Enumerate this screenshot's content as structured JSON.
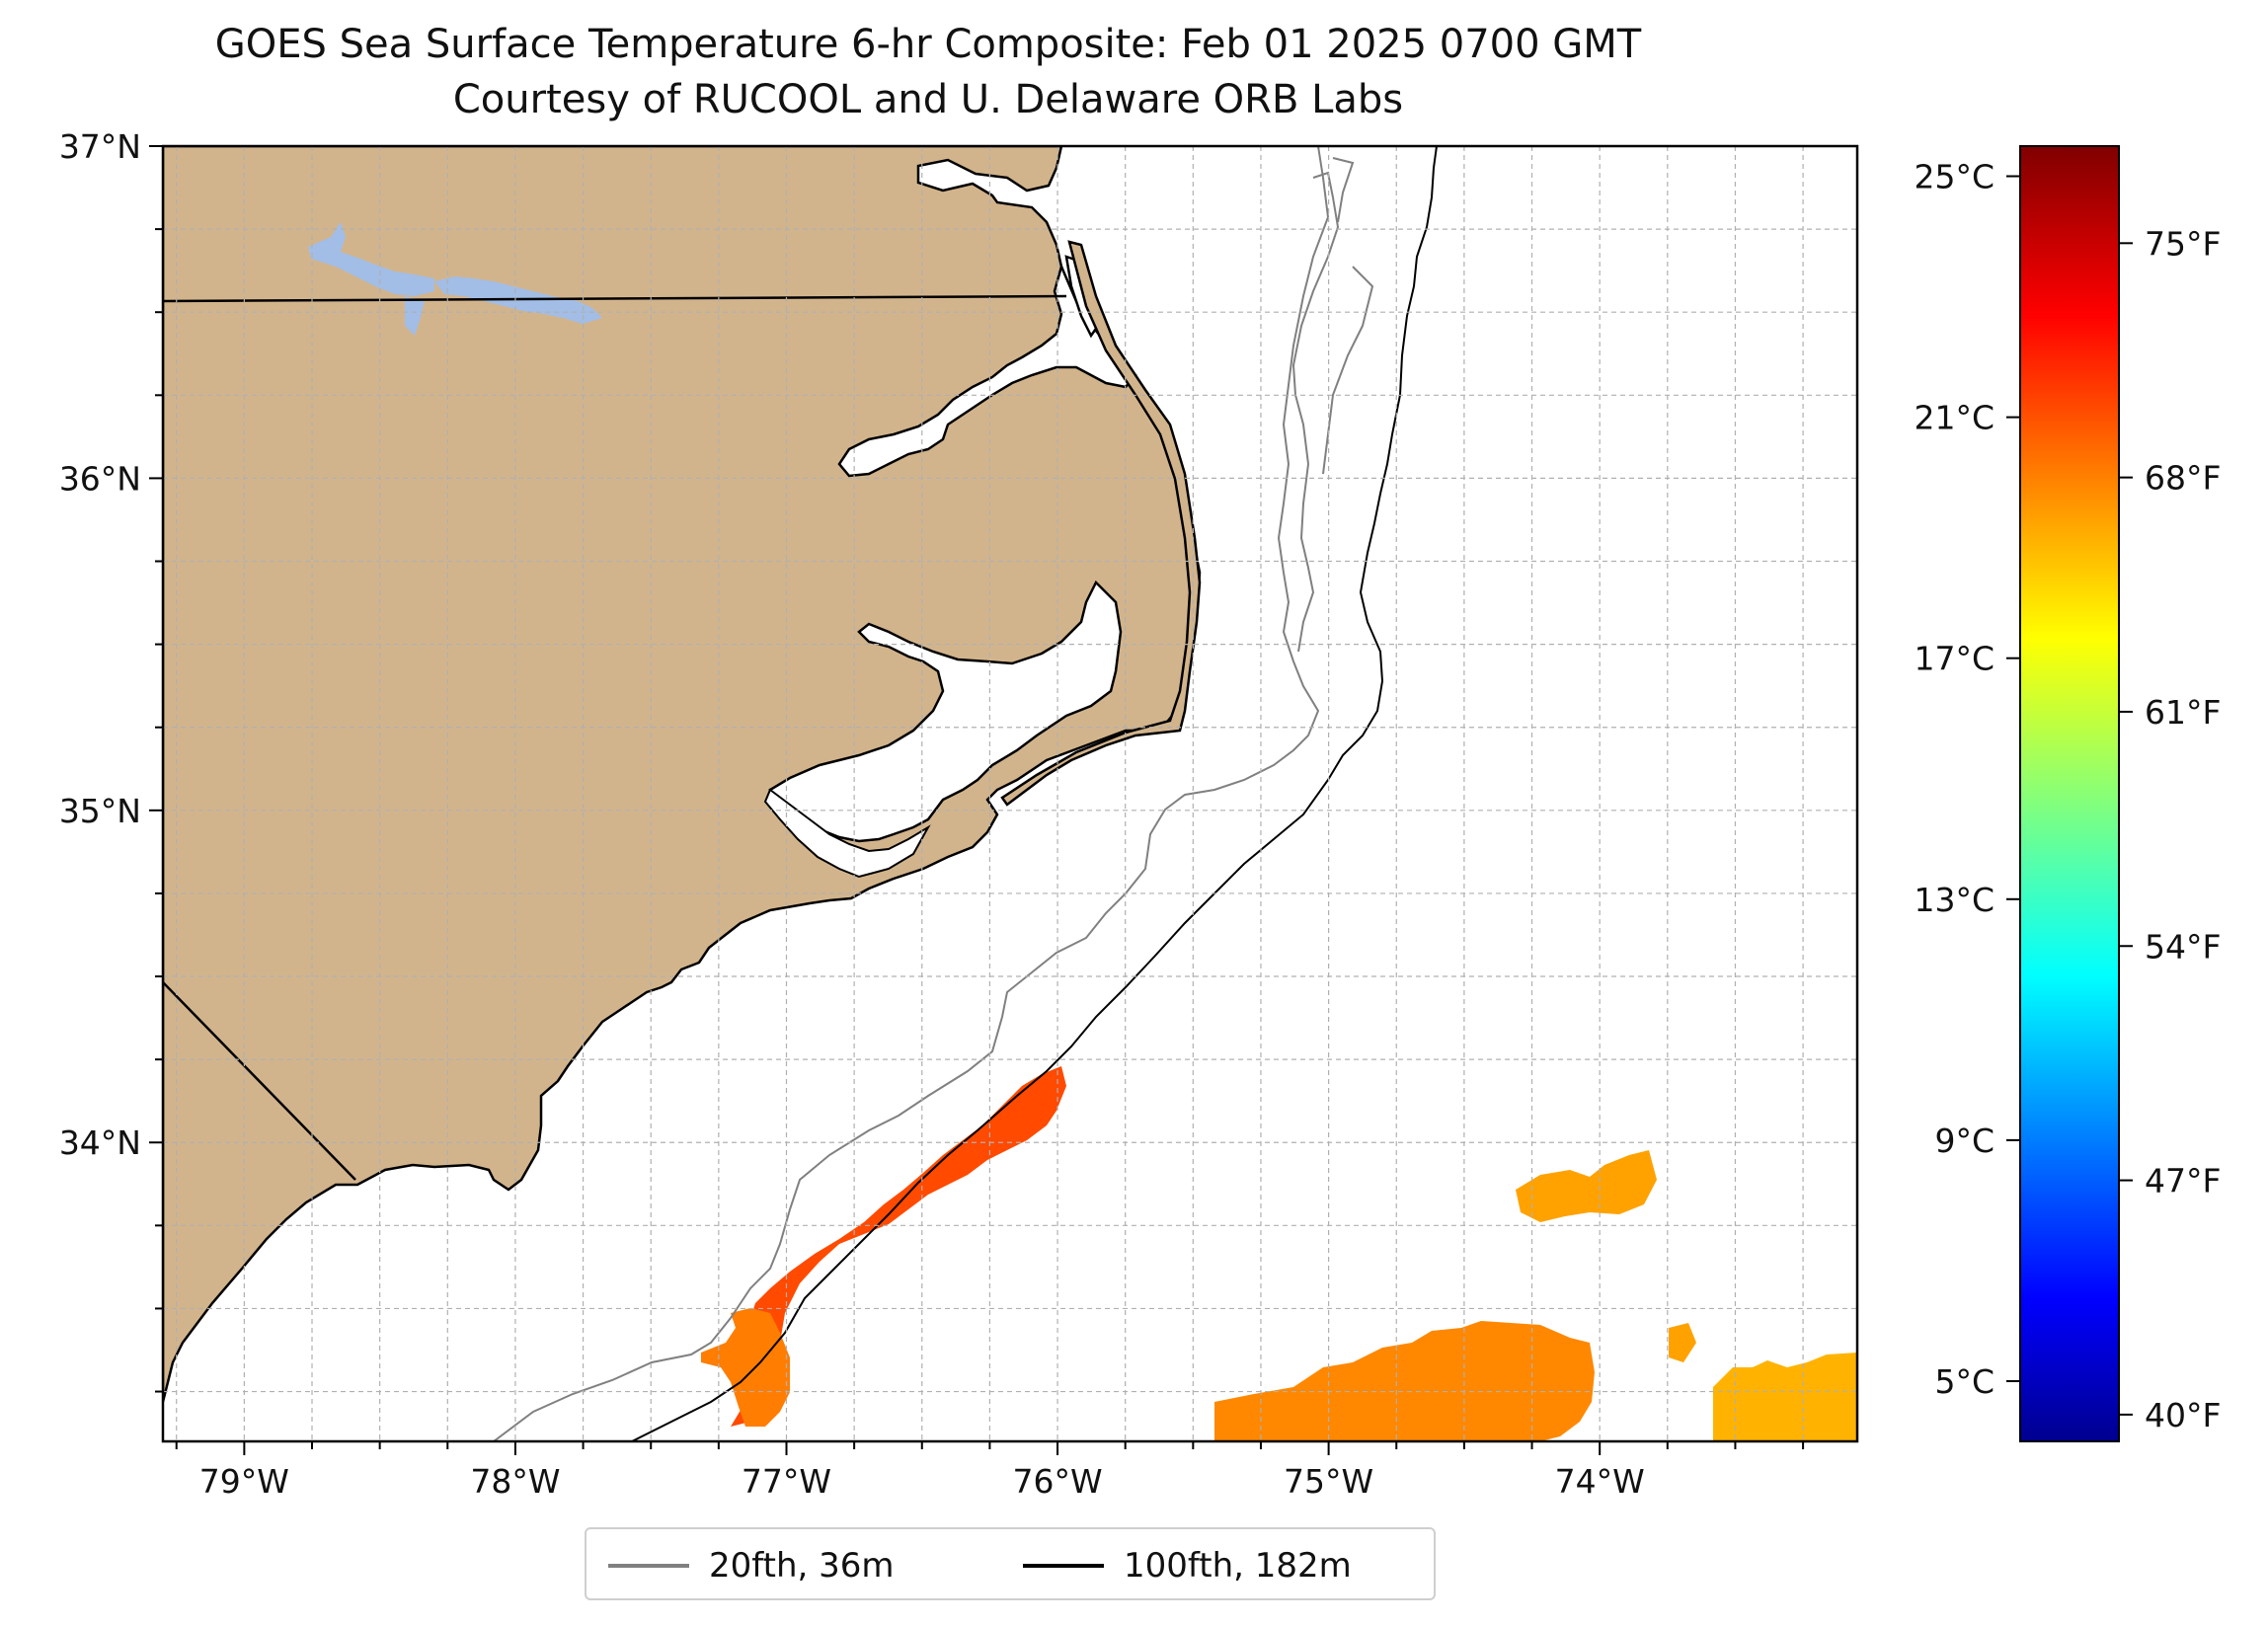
{
  "title": "GOES Sea Surface Temperature 6-hr Composite: Feb 01 2025 0700 GMT",
  "subtitle": "Courtesy of RUCOOL and U. Delaware ORB Labs",
  "map": {
    "lon_range": [
      -79.3,
      -73.05
    ],
    "lat_range": [
      33.1,
      37.0
    ],
    "lon_ticks": [
      {
        "value": -79,
        "label": "79°W"
      },
      {
        "value": -78,
        "label": "78°W"
      },
      {
        "value": -77,
        "label": "77°W"
      },
      {
        "value": -76,
        "label": "76°W"
      },
      {
        "value": -75,
        "label": "75°W"
      },
      {
        "value": -74,
        "label": "74°W"
      }
    ],
    "lat_ticks": [
      {
        "value": 37,
        "label": "37°N"
      },
      {
        "value": 36,
        "label": "36°N"
      },
      {
        "value": 35,
        "label": "35°N"
      },
      {
        "value": 34,
        "label": "34°N"
      }
    ],
    "gridlines": true,
    "colors": {
      "land": "#d2b48c",
      "lake": "#a2bde6",
      "coast": "#000000",
      "iso20": "#808080",
      "iso100": "#000000",
      "grid": "#b0b0b0"
    }
  },
  "colorbar": {
    "colormap": "jet",
    "range_c": [
      4.0,
      25.5
    ],
    "celsius_ticks": [
      {
        "value": 25,
        "label": "25°C"
      },
      {
        "value": 21,
        "label": "21°C"
      },
      {
        "value": 17,
        "label": "17°C"
      },
      {
        "value": 13,
        "label": "13°C"
      },
      {
        "value": 9,
        "label": "9°C"
      },
      {
        "value": 5,
        "label": "5°C"
      }
    ],
    "fahrenheit_ticks": [
      {
        "value": 75,
        "label": "75°F"
      },
      {
        "value": 68,
        "label": "68°F"
      },
      {
        "value": 61,
        "label": "61°F"
      },
      {
        "value": 54,
        "label": "54°F"
      },
      {
        "value": 47,
        "label": "47°F"
      },
      {
        "value": 40,
        "label": "40°F"
      }
    ]
  },
  "legend": {
    "items": [
      {
        "label": "20fth, 36m",
        "color": "#808080"
      },
      {
        "label": "100fth, 182m",
        "color": "#000000"
      }
    ]
  }
}
